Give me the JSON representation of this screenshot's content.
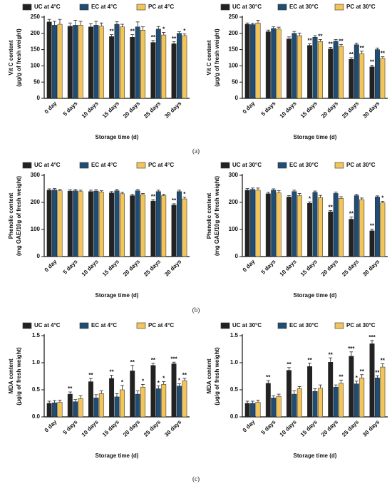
{
  "captions": [
    "(a)",
    "(b)",
    "(c)"
  ],
  "chart_data": [
    {
      "type": "bar",
      "ylabel": [
        "Vit C content",
        "(μg/g of fresh weight)"
      ],
      "xlabel": "Storage time (d)",
      "categories": [
        "0 day",
        "5 days",
        "10 days",
        "15 days",
        "20 days",
        "25 days",
        "30 days"
      ],
      "ylim": [
        0,
        250
      ],
      "yticks": [
        0,
        50,
        100,
        150,
        200,
        250
      ],
      "series": [
        {
          "name": "UC at 4°C",
          "color": "#222222",
          "values": [
            235,
            222,
            220,
            190,
            188,
            172,
            168
          ],
          "errors": [
            8,
            10,
            10,
            6,
            8,
            6,
            6
          ],
          "annotations": [
            null,
            null,
            null,
            "**",
            "**",
            "**",
            "**"
          ]
        },
        {
          "name": "EC at 4°C",
          "color": "#1f4d73",
          "values": [
            225,
            225,
            225,
            228,
            220,
            213,
            200
          ],
          "errors": [
            12,
            15,
            12,
            8,
            15,
            8,
            5
          ],
          "annotations": [
            null,
            null,
            null,
            null,
            null,
            null,
            null
          ]
        },
        {
          "name": "PC at 4°C",
          "color": "#f2c45a",
          "values": [
            228,
            225,
            222,
            220,
            210,
            195,
            193
          ],
          "errors": [
            15,
            12,
            10,
            8,
            10,
            8,
            5
          ],
          "annotations": [
            null,
            null,
            null,
            null,
            null,
            "*",
            "*"
          ]
        }
      ]
    },
    {
      "type": "bar",
      "ylabel": [
        "Vit C content",
        "(μg/g of fresh weight)"
      ],
      "xlabel": "Storage time (d)",
      "categories": [
        "0 day",
        "5 days",
        "10 days",
        "15 days",
        "20 days",
        "25 days",
        "30 days"
      ],
      "ylim": [
        0,
        250
      ],
      "yticks": [
        0,
        50,
        100,
        150,
        200,
        250
      ],
      "series": [
        {
          "name": "UC at 30°C",
          "color": "#222222",
          "values": [
            228,
            205,
            183,
            163,
            152,
            120,
            97
          ],
          "errors": [
            4,
            5,
            6,
            5,
            5,
            5,
            5
          ],
          "annotations": [
            null,
            null,
            null,
            "**",
            "**",
            "**",
            "**"
          ]
        },
        {
          "name": "EC at 30°C",
          "color": "#1f4d73",
          "values": [
            227,
            215,
            200,
            188,
            176,
            165,
            150
          ],
          "errors": [
            4,
            5,
            6,
            5,
            5,
            5,
            5
          ],
          "annotations": [
            null,
            null,
            null,
            null,
            null,
            null,
            null
          ]
        },
        {
          "name": "PC at 30°C",
          "color": "#f2c45a",
          "values": [
            232,
            213,
            193,
            175,
            160,
            137,
            123
          ],
          "errors": [
            8,
            6,
            8,
            6,
            6,
            8,
            5
          ],
          "annotations": [
            null,
            null,
            null,
            "**",
            "**",
            "**",
            "**"
          ]
        }
      ]
    },
    {
      "type": "bar",
      "ylabel": [
        "Phenolic content",
        "(mg GAE/10g of fresh weight)"
      ],
      "xlabel": "Storage time (d)",
      "categories": [
        "0 day",
        "5 days",
        "10 days",
        "15 days",
        "20 days",
        "25 days",
        "30 days"
      ],
      "ylim": [
        0,
        300
      ],
      "yticks": [
        0,
        100,
        200,
        300
      ],
      "series": [
        {
          "name": "UC at 4°C",
          "color": "#222222",
          "values": [
            245,
            242,
            240,
            235,
            225,
            205,
            190
          ],
          "errors": [
            5,
            5,
            5,
            5,
            5,
            5,
            5
          ],
          "annotations": [
            null,
            null,
            null,
            null,
            null,
            "**",
            "**"
          ]
        },
        {
          "name": "EC at 4°C",
          "color": "#1f4d73",
          "values": [
            246,
            243,
            242,
            243,
            243,
            240,
            240
          ],
          "errors": [
            5,
            5,
            5,
            5,
            5,
            5,
            5
          ],
          "annotations": [
            null,
            null,
            null,
            null,
            null,
            null,
            null
          ]
        },
        {
          "name": "PC at 4°C",
          "color": "#f2c45a",
          "values": [
            243,
            240,
            238,
            232,
            228,
            225,
            213
          ],
          "errors": [
            5,
            5,
            5,
            5,
            5,
            5,
            6
          ],
          "annotations": [
            null,
            null,
            null,
            null,
            null,
            null,
            "*"
          ]
        }
      ]
    },
    {
      "type": "bar",
      "ylabel": [
        "Phenolic content",
        "(mg GAE/10g of fresh weight)"
      ],
      "xlabel": "Storage time (d)",
      "categories": [
        "0 day",
        "5 days",
        "10 days",
        "15 days",
        "20 days",
        "25 days",
        "30 days"
      ],
      "ylim": [
        0,
        300
      ],
      "yticks": [
        0,
        100,
        200,
        300
      ],
      "series": [
        {
          "name": "UC at 30°C",
          "color": "#222222",
          "values": [
            245,
            232,
            220,
            197,
            165,
            138,
            95
          ],
          "errors": [
            6,
            5,
            5,
            5,
            5,
            8,
            6
          ],
          "annotations": [
            null,
            null,
            null,
            "*",
            "**",
            "**",
            "**"
          ]
        },
        {
          "name": "EC at 30°C",
          "color": "#1f4d73",
          "values": [
            248,
            245,
            240,
            237,
            233,
            225,
            220
          ],
          "errors": [
            5,
            5,
            5,
            5,
            5,
            5,
            4
          ],
          "annotations": [
            null,
            null,
            null,
            null,
            null,
            null,
            null
          ]
        },
        {
          "name": "PC at 30°C",
          "color": "#f2c45a",
          "values": [
            245,
            235,
            225,
            218,
            215,
            210,
            198
          ],
          "errors": [
            8,
            8,
            8,
            8,
            6,
            6,
            6
          ],
          "annotations": [
            null,
            null,
            null,
            null,
            null,
            null,
            "*"
          ]
        }
      ]
    },
    {
      "type": "bar",
      "ylabel": [
        "MDA content",
        "(μg/g of fresh weight)"
      ],
      "xlabel": "Storage time (d)",
      "categories": [
        "0 day",
        "5 days",
        "10 days",
        "15 days",
        "20 days",
        "25 days",
        "30 days"
      ],
      "ylim": [
        0,
        1.5
      ],
      "yticks": [
        {
          "value": 0,
          "label": "0.0"
        },
        0.5,
        {
          "value": 1,
          "label": "1.0"
        },
        1.5
      ],
      "series": [
        {
          "name": "UC at 4°C",
          "color": "#222222",
          "values": [
            0.25,
            0.42,
            0.65,
            0.71,
            0.85,
            0.95,
            0.98
          ],
          "errors": [
            0.04,
            0.04,
            0.06,
            0.06,
            0.1,
            0.04,
            0.03
          ],
          "annotations": [
            null,
            "**",
            "**",
            "**",
            "**",
            "**",
            "***"
          ]
        },
        {
          "name": "EC at 4°C",
          "color": "#1f4d73",
          "values": [
            0.26,
            0.28,
            0.35,
            0.37,
            0.42,
            0.52,
            0.57
          ],
          "errors": [
            0.04,
            0.04,
            0.06,
            0.06,
            0.06,
            0.05,
            0.04
          ],
          "annotations": [
            null,
            null,
            null,
            null,
            null,
            "*",
            "*"
          ]
        },
        {
          "name": "PC at 4°C",
          "color": "#f2c45a",
          "values": [
            0.27,
            0.34,
            0.43,
            0.5,
            0.55,
            0.6,
            0.67
          ],
          "errors": [
            0.04,
            0.05,
            0.05,
            0.08,
            0.05,
            0.05,
            0.04
          ],
          "annotations": [
            null,
            null,
            null,
            "*",
            "*",
            "*",
            "**"
          ]
        }
      ]
    },
    {
      "type": "bar",
      "ylabel": [
        "MDA content",
        "(μg/g of fresh weight)"
      ],
      "xlabel": "Storage time (d)",
      "categories": [
        "0 day",
        "5 days",
        "10 days",
        "15 days",
        "20 days",
        "25 days",
        "30 days"
      ],
      "ylim": [
        0,
        1.5
      ],
      "yticks": [
        {
          "value": 0,
          "label": "0.0"
        },
        0.5,
        {
          "value": 1,
          "label": "1.0"
        },
        1.5
      ],
      "series": [
        {
          "name": "UC at 30°C",
          "color": "#222222",
          "values": [
            0.25,
            0.62,
            0.86,
            0.93,
            1.01,
            1.12,
            1.35
          ],
          "errors": [
            0.04,
            0.05,
            0.05,
            0.06,
            0.08,
            0.08,
            0.06
          ],
          "annotations": [
            null,
            "**",
            "**",
            "**",
            "**",
            "***",
            "***"
          ]
        },
        {
          "name": "EC at 30°C",
          "color": "#1f4d73",
          "values": [
            0.25,
            0.35,
            0.42,
            0.47,
            0.55,
            0.61,
            0.72
          ],
          "errors": [
            0.04,
            0.04,
            0.06,
            0.05,
            0.04,
            0.05,
            0.04
          ],
          "annotations": [
            null,
            null,
            null,
            null,
            null,
            "*",
            "**"
          ]
        },
        {
          "name": "PC at 30°C",
          "color": "#f2c45a",
          "values": [
            0.27,
            0.38,
            0.52,
            0.53,
            0.62,
            0.72,
            0.92
          ],
          "errors": [
            0.04,
            0.04,
            0.04,
            0.06,
            0.06,
            0.06,
            0.06
          ],
          "annotations": [
            null,
            null,
            null,
            null,
            "**",
            "**",
            "**"
          ]
        }
      ]
    }
  ]
}
